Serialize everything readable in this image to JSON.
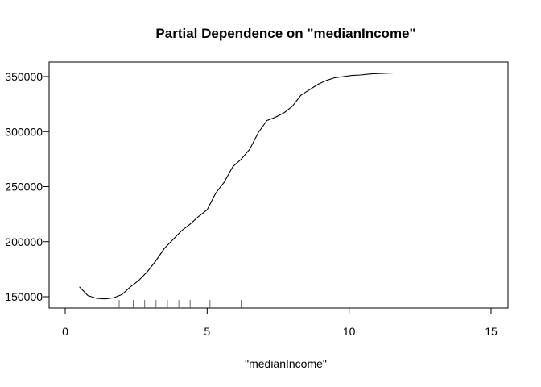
{
  "chart_data": {
    "type": "line",
    "title": "Partial Dependence on \"medianIncome\"",
    "xlabel": "\"medianIncome\"",
    "ylabel": "",
    "xlim": [
      0,
      15
    ],
    "ylim": [
      140000,
      360000
    ],
    "x_ticks": [
      0,
      5,
      10,
      15
    ],
    "x_tick_labels": [
      "0",
      "5",
      "10",
      "15"
    ],
    "y_ticks": [
      150000,
      200000,
      250000,
      300000,
      350000
    ],
    "y_tick_labels": [
      "150000",
      "200000",
      "250000",
      "300000",
      "350000"
    ],
    "grid": false,
    "series": [
      {
        "x": [
          0.5,
          0.8,
          1.1,
          1.4,
          1.7,
          2.0,
          2.3,
          2.6,
          2.9,
          3.2,
          3.5,
          3.8,
          4.1,
          4.4,
          4.7,
          5.0,
          5.3,
          5.6,
          5.9,
          6.2,
          6.5,
          6.8,
          7.1,
          7.4,
          7.7,
          8.0,
          8.3,
          8.6,
          8.9,
          9.2,
          9.5,
          9.8,
          10.1,
          10.4,
          10.8,
          11.2,
          11.6,
          12.0,
          12.5,
          13.0,
          13.5,
          14.0,
          14.5,
          15.0
        ],
        "y": [
          159000,
          151000,
          148500,
          148000,
          149000,
          152000,
          159000,
          165000,
          173000,
          183000,
          194000,
          202000,
          210000,
          216000,
          223000,
          229000,
          244000,
          254000,
          268000,
          275000,
          284000,
          299000,
          310000,
          313000,
          317000,
          323000,
          333000,
          338000,
          343000,
          346500,
          349000,
          350000,
          351000,
          351500,
          352500,
          353000,
          353300,
          353300,
          353300,
          353300,
          353300,
          353300,
          353300,
          353300
        ]
      }
    ],
    "rug": [
      1.9,
      2.4,
      2.8,
      3.2,
      3.6,
      4.0,
      4.4,
      5.1,
      6.2
    ]
  }
}
